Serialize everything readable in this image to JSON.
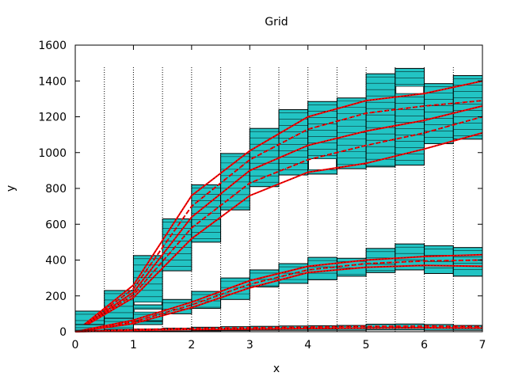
{
  "chart_data": {
    "type": "bar",
    "title": "Grid",
    "xlabel": "x",
    "ylabel": "y",
    "xlim": [
      0,
      7
    ],
    "ylim": [
      0,
      1600
    ],
    "xticks": [
      0,
      1,
      2,
      3,
      4,
      5,
      6,
      7
    ],
    "yticks": [
      0,
      200,
      400,
      600,
      800,
      1000,
      1200,
      1400,
      1600
    ],
    "vertical_gridlines_x": [
      0.5,
      1,
      1.5,
      2,
      2.5,
      3,
      3.5,
      4,
      4.5,
      5,
      5.5,
      6,
      6.5
    ],
    "grid": "vertical dotted lines at half-unit steps",
    "bin_width": 0.5,
    "box_fill_color": "#22c4c4",
    "box_stroke_color": "#000000",
    "line_color": "#ff0000",
    "series": [
      {
        "boxes": [
          {
            "x": 0.25,
            "lo": 0,
            "hi": 115
          },
          {
            "x": 0.75,
            "lo": 20,
            "hi": 230
          },
          {
            "x": 1.25,
            "lo": 40,
            "hi": 425
          },
          {
            "x": 1.75,
            "lo": 340,
            "hi": 630
          },
          {
            "x": 2.25,
            "lo": 500,
            "hi": 820
          },
          {
            "x": 2.75,
            "lo": 680,
            "hi": 995
          },
          {
            "x": 3.25,
            "lo": 810,
            "hi": 1135
          },
          {
            "x": 3.75,
            "lo": 875,
            "hi": 1240
          },
          {
            "x": 4.25,
            "lo": 880,
            "hi": 1285
          },
          {
            "x": 4.75,
            "lo": 910,
            "hi": 1305
          },
          {
            "x": 5.25,
            "lo": 920,
            "hi": 1440
          },
          {
            "x": 5.75,
            "lo": 930,
            "hi": 1470
          },
          {
            "x": 6.25,
            "lo": 1050,
            "hi": 1385
          },
          {
            "x": 6.75,
            "lo": 1075,
            "hi": 1430
          }
        ],
        "gaps": [
          {
            "x": 1.25,
            "lo": 130,
            "hi": 165
          },
          {
            "x": 4.25,
            "lo": 905,
            "hi": 965
          },
          {
            "x": 5.75,
            "lo": 1330,
            "hi": 1370
          }
        ],
        "curves": [
          {
            "x": [
              0,
              1,
              2,
              3,
              4,
              5,
              6,
              7
            ],
            "y": [
              0,
              190,
              520,
              760,
              890,
              940,
              1020,
              1110
            ]
          },
          {
            "x": [
              0,
              1,
              2,
              3,
              4,
              5,
              6,
              7
            ],
            "y": [
              0,
              205,
              580,
              830,
              960,
              1040,
              1110,
              1200
            ]
          },
          {
            "x": [
              0,
              1,
              2,
              3,
              4,
              5,
              6,
              7
            ],
            "y": [
              0,
              220,
              640,
              900,
              1040,
              1120,
              1180,
              1260
            ]
          },
          {
            "x": [
              0,
              1,
              2,
              3,
              4,
              5,
              6,
              7
            ],
            "y": [
              0,
              240,
              700,
              960,
              1130,
              1220,
              1260,
              1290
            ]
          },
          {
            "x": [
              0,
              1,
              2,
              3,
              4,
              5,
              6,
              7
            ],
            "y": [
              0,
              260,
              760,
              1010,
              1200,
              1290,
              1330,
              1400
            ]
          }
        ]
      },
      {
        "boxes": [
          {
            "x": 0.25,
            "lo": 0,
            "hi": 40
          },
          {
            "x": 0.75,
            "lo": 10,
            "hi": 75
          },
          {
            "x": 1.25,
            "lo": 60,
            "hi": 150
          },
          {
            "x": 1.75,
            "lo": 100,
            "hi": 180
          },
          {
            "x": 2.25,
            "lo": 130,
            "hi": 225
          },
          {
            "x": 2.75,
            "lo": 180,
            "hi": 300
          },
          {
            "x": 3.25,
            "lo": 250,
            "hi": 345
          },
          {
            "x": 3.75,
            "lo": 270,
            "hi": 380
          },
          {
            "x": 4.25,
            "lo": 290,
            "hi": 415
          },
          {
            "x": 4.75,
            "lo": 310,
            "hi": 410
          },
          {
            "x": 5.25,
            "lo": 330,
            "hi": 465
          },
          {
            "x": 5.75,
            "lo": 345,
            "hi": 490
          },
          {
            "x": 6.25,
            "lo": 325,
            "hi": 480
          },
          {
            "x": 6.75,
            "lo": 310,
            "hi": 470
          }
        ],
        "gaps": [
          {
            "x": 1.25,
            "lo": 110,
            "hi": 125
          }
        ],
        "curves": [
          {
            "x": [
              0,
              1,
              2,
              3,
              4,
              5,
              6,
              7
            ],
            "y": [
              0,
              45,
              135,
              245,
              330,
              360,
              370,
              365
            ]
          },
          {
            "x": [
              0,
              1,
              2,
              3,
              4,
              5,
              6,
              7
            ],
            "y": [
              0,
              55,
              150,
              265,
              345,
              380,
              395,
              400
            ]
          },
          {
            "x": [
              0,
              1,
              2,
              3,
              4,
              5,
              6,
              7
            ],
            "y": [
              0,
              65,
              165,
              285,
              365,
              400,
              420,
              430
            ]
          }
        ]
      },
      {
        "boxes": [
          {
            "x": 0.25,
            "lo": 0,
            "hi": 8
          },
          {
            "x": 0.75,
            "lo": 0,
            "hi": 12
          },
          {
            "x": 1.25,
            "lo": 2,
            "hi": 15
          },
          {
            "x": 1.75,
            "lo": 3,
            "hi": 20
          },
          {
            "x": 2.25,
            "lo": 5,
            "hi": 25
          },
          {
            "x": 2.75,
            "lo": 6,
            "hi": 28
          },
          {
            "x": 3.25,
            "lo": 8,
            "hi": 30
          },
          {
            "x": 3.75,
            "lo": 8,
            "hi": 32
          },
          {
            "x": 4.25,
            "lo": 8,
            "hi": 33
          },
          {
            "x": 4.75,
            "lo": 8,
            "hi": 35
          },
          {
            "x": 5.25,
            "lo": 10,
            "hi": 42
          },
          {
            "x": 5.75,
            "lo": 10,
            "hi": 43
          },
          {
            "x": 6.25,
            "lo": 8,
            "hi": 40
          },
          {
            "x": 6.75,
            "lo": 8,
            "hi": 35
          }
        ],
        "gaps": [],
        "curves": [
          {
            "x": [
              0,
              1,
              2,
              3,
              4,
              5,
              6,
              7
            ],
            "y": [
              0,
              8,
              12,
              15,
              18,
              20,
              22,
              20
            ]
          },
          {
            "x": [
              0,
              1,
              2,
              3,
              4,
              5,
              6,
              7
            ],
            "y": [
              0,
              12,
              18,
              22,
              25,
              30,
              32,
              28
            ]
          }
        ]
      }
    ]
  }
}
